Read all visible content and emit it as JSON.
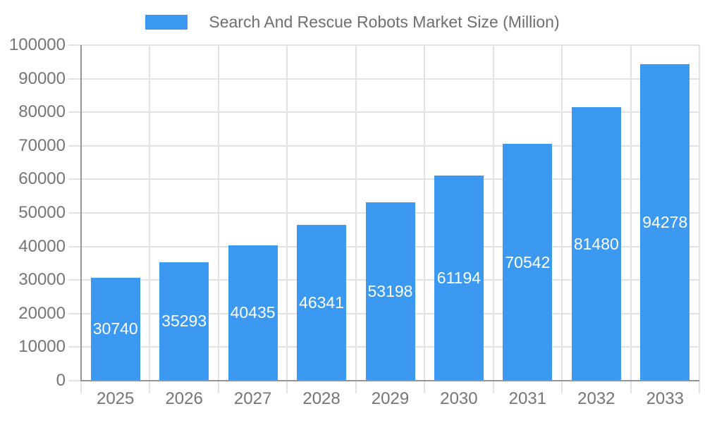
{
  "legend": {
    "label": "Search And Rescue Robots Market Size (Million)",
    "position": "top"
  },
  "chart_data": {
    "type": "bar",
    "title": "Search And Rescue Robots Market Size (Million)",
    "categories": [
      "2025",
      "2026",
      "2027",
      "2028",
      "2029",
      "2030",
      "2031",
      "2032",
      "2033"
    ],
    "values": [
      30740,
      35293,
      40435,
      46341,
      53198,
      61194,
      70542,
      81480,
      94278
    ],
    "xlabel": "",
    "ylabel": "",
    "ylim": [
      0,
      100000
    ],
    "ytick_step": 10000,
    "ytick_labels": [
      "0",
      "10000",
      "20000",
      "30000",
      "40000",
      "50000",
      "60000",
      "70000",
      "80000",
      "90000",
      "100000"
    ],
    "grid": true,
    "legend_position": "top",
    "value_label_position": "inside-center"
  },
  "colors": {
    "bar": "#3B99F1",
    "grid": "#E2E2E2",
    "axis": "#949494",
    "tick_text": "#757575",
    "title_text": "#6E6E6E",
    "bar_label_text": "#FFFFFF",
    "background": "#FFFFFF"
  }
}
